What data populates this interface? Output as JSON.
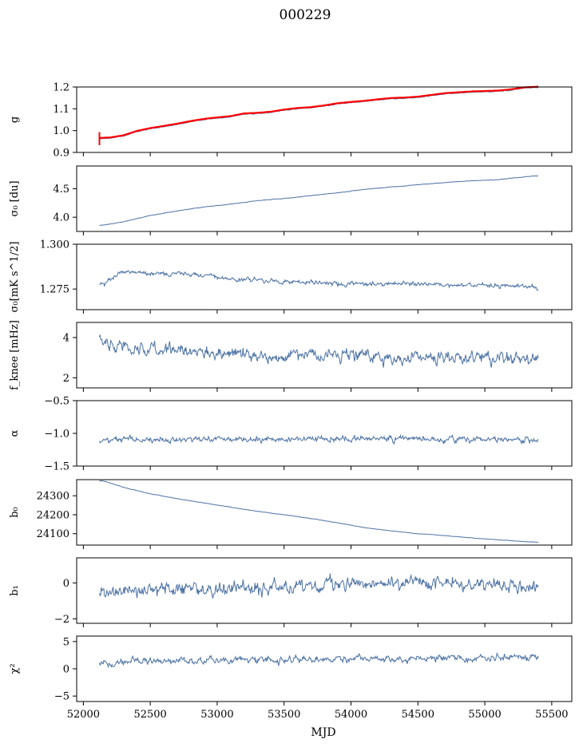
{
  "figure": {
    "title": "000229",
    "xlabel": "MJD"
  },
  "colors": {
    "series": "#4c72a4",
    "highlight": "#ff0000"
  },
  "chart_data": [
    {
      "type": "line",
      "id": "g",
      "ylabel": "g",
      "x_range": [
        52120,
        55400
      ],
      "ylim": [
        0.9,
        1.2
      ],
      "yticks": [
        "0.9",
        "1.0",
        "1.1",
        "1.2"
      ],
      "ytick_values": [
        0.9,
        1.0,
        1.1,
        1.2
      ],
      "x": [
        52120,
        52200,
        52300,
        52400,
        52500,
        52600,
        52700,
        52800,
        52900,
        53000,
        53100,
        53200,
        53300,
        53400,
        53500,
        53600,
        53700,
        53800,
        53900,
        54000,
        54100,
        54200,
        54300,
        54400,
        54500,
        54600,
        54700,
        54800,
        54900,
        55000,
        55100,
        55200,
        55300,
        55400
      ],
      "y": [
        0.963,
        0.965,
        0.975,
        0.995,
        1.008,
        1.018,
        1.028,
        1.04,
        1.05,
        1.057,
        1.063,
        1.075,
        1.078,
        1.083,
        1.093,
        1.1,
        1.104,
        1.112,
        1.122,
        1.128,
        1.133,
        1.14,
        1.146,
        1.148,
        1.152,
        1.16,
        1.168,
        1.172,
        1.176,
        1.178,
        1.18,
        1.186,
        1.195,
        1.198
      ],
      "noise": 0.002,
      "fit_color": "red",
      "fit_start_error": 0.03
    },
    {
      "type": "line",
      "id": "sigma0",
      "ylabel": "σ₀ [du]",
      "x_range": [
        52120,
        55400
      ],
      "ylim": [
        3.75,
        4.9
      ],
      "yticks": [
        "4.0",
        "4.5"
      ],
      "ytick_values": [
        4.0,
        4.5
      ],
      "x": [
        52150,
        52300,
        52500,
        52700,
        52900,
        53100,
        53300,
        53500,
        53700,
        53900,
        54100,
        54300,
        54500,
        54700,
        54900,
        55100,
        55300,
        55400
      ],
      "y": [
        3.86,
        3.92,
        4.03,
        4.11,
        4.18,
        4.23,
        4.29,
        4.33,
        4.38,
        4.43,
        4.49,
        4.53,
        4.57,
        4.61,
        4.64,
        4.66,
        4.71,
        4.73
      ],
      "noise": 0.006
    },
    {
      "type": "line",
      "id": "sigma0_mks",
      "ylabel": "σ₀[mK s^1/2]",
      "x_range": [
        52120,
        55400
      ],
      "ylim": [
        1.2635,
        1.3
      ],
      "yticks": [
        "1.275",
        "1.300"
      ],
      "ytick_values": [
        1.275,
        1.3
      ],
      "x": [
        52150,
        52300,
        52500,
        52700,
        52900,
        53100,
        53300,
        53500,
        53700,
        53900,
        54100,
        54300,
        54500,
        54700,
        54900,
        55100,
        55250,
        55400
      ],
      "y": [
        1.278,
        1.285,
        1.284,
        1.284,
        1.283,
        1.281,
        1.28,
        1.279,
        1.279,
        1.278,
        1.278,
        1.278,
        1.278,
        1.277,
        1.277,
        1.277,
        1.277,
        1.275
      ],
      "noise": 0.0018
    },
    {
      "type": "line",
      "id": "fknee",
      "ylabel": "f_knee [mHz]",
      "x_range": [
        52120,
        55400
      ],
      "ylim": [
        1.5,
        4.75
      ],
      "yticks": [
        "2",
        "4"
      ],
      "ytick_values": [
        2,
        4
      ],
      "x": [
        52150,
        52400,
        52700,
        53000,
        53300,
        53600,
        53900,
        54200,
        54500,
        54800,
        55100,
        55400
      ],
      "y": [
        3.7,
        3.5,
        3.3,
        3.2,
        3.1,
        3.1,
        3.1,
        3.0,
        3.0,
        3.0,
        2.95,
        2.9
      ],
      "noise": 0.45
    },
    {
      "type": "line",
      "id": "alpha",
      "ylabel": "α",
      "x_range": [
        52120,
        55400
      ],
      "ylim": [
        -1.5,
        -0.5
      ],
      "yticks": [
        "−1.5",
        "−1.0",
        "−0.5"
      ],
      "ytick_values": [
        -1.5,
        -1.0,
        -0.5
      ],
      "x": [
        52150,
        52500,
        53000,
        53500,
        54000,
        54500,
        55000,
        55400
      ],
      "y": [
        -1.1,
        -1.1,
        -1.09,
        -1.09,
        -1.08,
        -1.09,
        -1.09,
        -1.1
      ],
      "noise": 0.06
    },
    {
      "type": "line",
      "id": "b0",
      "ylabel": "b₀",
      "x_range": [
        52120,
        55400
      ],
      "ylim": [
        24040,
        24385
      ],
      "yticks": [
        "24100",
        "24200",
        "24300"
      ],
      "ytick_values": [
        24100,
        24200,
        24300
      ],
      "x": [
        52150,
        52300,
        52500,
        52700,
        52900,
        53100,
        53300,
        53500,
        53700,
        53900,
        54100,
        54300,
        54500,
        54700,
        54900,
        55100,
        55300,
        55400
      ],
      "y": [
        24378,
        24345,
        24310,
        24285,
        24262,
        24240,
        24218,
        24200,
        24180,
        24158,
        24132,
        24115,
        24100,
        24090,
        24078,
        24068,
        24058,
        24055
      ],
      "noise": 1.5
    },
    {
      "type": "line",
      "id": "b1",
      "ylabel": "b₁",
      "x_range": [
        52120,
        55400
      ],
      "ylim": [
        -2.25,
        1.4
      ],
      "yticks": [
        "−2",
        "0"
      ],
      "ytick_values": [
        -2,
        0
      ],
      "x": [
        52150,
        52500,
        53000,
        53500,
        54000,
        54500,
        55000,
        55400
      ],
      "y": [
        -0.5,
        -0.4,
        -0.3,
        -0.2,
        -0.1,
        0.0,
        -0.1,
        -0.2
      ],
      "noise": 0.5
    },
    {
      "type": "line",
      "id": "chi2",
      "ylabel": "χ²",
      "x_range": [
        52120,
        55400
      ],
      "ylim": [
        -6,
        6
      ],
      "yticks": [
        "−5",
        "0",
        "5"
      ],
      "ytick_values": [
        -5,
        0,
        5
      ],
      "x": [
        52150,
        52500,
        53000,
        53500,
        54000,
        54500,
        55000,
        55400
      ],
      "y": [
        0.8,
        1.4,
        1.6,
        1.7,
        1.8,
        1.8,
        2.0,
        2.2
      ],
      "noise": 0.9
    }
  ],
  "xaxis": {
    "ticks": [
      "52000",
      "52500",
      "53000",
      "53500",
      "54000",
      "54500",
      "55000",
      "55500"
    ],
    "tick_values": [
      52000,
      52500,
      53000,
      53500,
      54000,
      54500,
      55000,
      55500
    ],
    "xlim": [
      51950,
      55650
    ]
  }
}
